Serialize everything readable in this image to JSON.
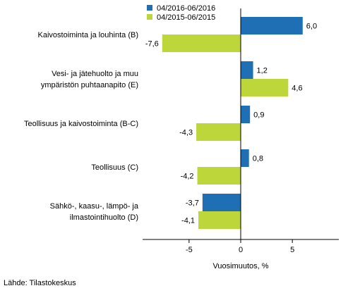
{
  "chart_data": {
    "type": "bar",
    "orientation": "horizontal",
    "title": "",
    "xlabel": "Vuosimuutos, %",
    "ylabel": "",
    "xlim": [
      -9.5,
      9.5
    ],
    "xticks": [
      -5,
      0,
      5
    ],
    "grid": false,
    "legend_position": "top-center",
    "categories": [
      [
        "Kaivostoiminta ja louhinta (B)"
      ],
      [
        "Vesi- ja jätehuolto ja muu",
        "ympäristön puhtaanapito (E)"
      ],
      [
        "Teollisuus ja kaivostoiminta (B-C)"
      ],
      [
        "Teollisuus (C)"
      ],
      [
        "Sähkö-, kaasu-, lämpö- ja",
        "ilmastointihuolto (D)"
      ]
    ],
    "series": [
      {
        "name": "04/2016-06/2016",
        "color": "#1f6fb4",
        "values": [
          6.0,
          1.2,
          0.9,
          0.8,
          -3.7
        ],
        "labels": [
          "6,0",
          "1,2",
          "0,9",
          "0,8",
          "-3,7"
        ]
      },
      {
        "name": "04/2015-06/2015",
        "color": "#bdd63a",
        "values": [
          -7.6,
          4.6,
          -4.3,
          -4.2,
          -4.1
        ],
        "labels": [
          "-7,6",
          "4,6",
          "-4,3",
          "-4,2",
          "-4,1"
        ]
      }
    ],
    "tick_labels": [
      "-5",
      "0",
      "5"
    ]
  },
  "source": "Lähde: Tilastokeskus"
}
